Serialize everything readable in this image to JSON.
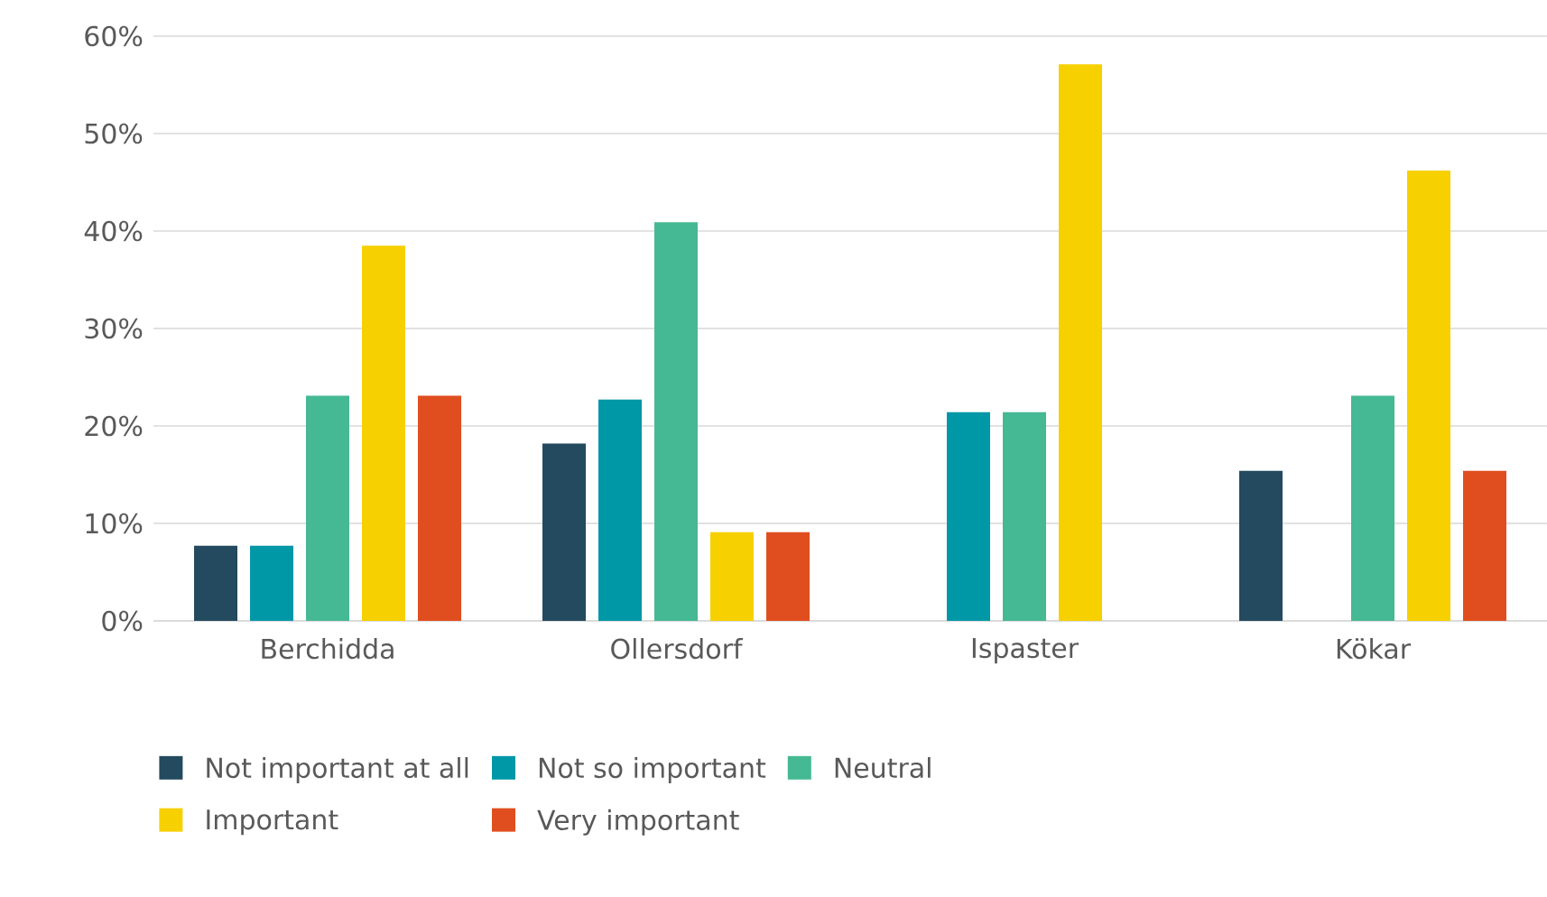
{
  "chart_data": {
    "type": "bar",
    "categories": [
      "Berchidda",
      "Ollersdorf",
      "Ispaster",
      "Kökar"
    ],
    "series": [
      {
        "name": "Not important at all",
        "color": "#234a5e",
        "values": [
          7.7,
          18.2,
          0,
          15.4
        ]
      },
      {
        "name": "Not so important",
        "color": "#0097a7",
        "values": [
          7.7,
          22.7,
          21.4,
          0
        ]
      },
      {
        "name": "Neutral",
        "color": "#45b894",
        "values": [
          23.1,
          40.9,
          21.4,
          23.1
        ]
      },
      {
        "name": "Important",
        "color": "#f7d000",
        "values": [
          38.5,
          9.1,
          57.1,
          46.2
        ]
      },
      {
        "name": "Very important",
        "color": "#e04e1f",
        "values": [
          23.1,
          9.1,
          0,
          15.4
        ]
      }
    ],
    "ylim": [
      0,
      60
    ],
    "yticks": [
      {
        "value": 0,
        "label": "0%"
      },
      {
        "value": 10,
        "label": "10%"
      },
      {
        "value": 20,
        "label": "20%"
      },
      {
        "value": 30,
        "label": "30%"
      },
      {
        "value": 40,
        "label": "40%"
      },
      {
        "value": 50,
        "label": "50%"
      },
      {
        "value": 60,
        "label": "60%"
      }
    ],
    "grid": "y",
    "legend": "bottom"
  }
}
